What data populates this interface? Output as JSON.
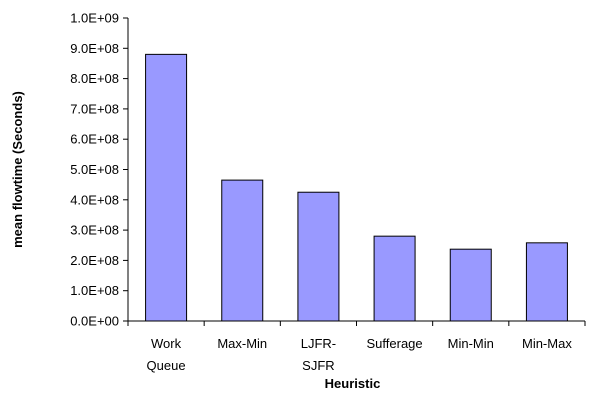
{
  "chart_data": {
    "type": "bar",
    "title": "",
    "xlabel": "Heuristic",
    "ylabel": "mean flowtime (Seconds)",
    "categories": [
      [
        "Work",
        "Queue"
      ],
      [
        "Max-Min"
      ],
      [
        "LJFR-",
        "SJFR"
      ],
      [
        "Sufferage"
      ],
      [
        "Min-Min"
      ],
      [
        "Min-Max"
      ]
    ],
    "values": [
      880000000,
      465000000,
      425000000,
      280000000,
      237000000,
      258000000
    ],
    "ylim": [
      0,
      1000000000
    ],
    "yticks": [
      "0.0E+00",
      "1.0E+08",
      "2.0E+08",
      "3.0E+08",
      "4.0E+08",
      "5.0E+08",
      "6.0E+08",
      "7.0E+08",
      "8.0E+08",
      "9.0E+08",
      "1.0E+09"
    ],
    "grid": false,
    "legend": "none",
    "colors": {
      "bar_fill": "#9999ff",
      "bar_stroke": "#000000",
      "axis": "#000000"
    }
  }
}
